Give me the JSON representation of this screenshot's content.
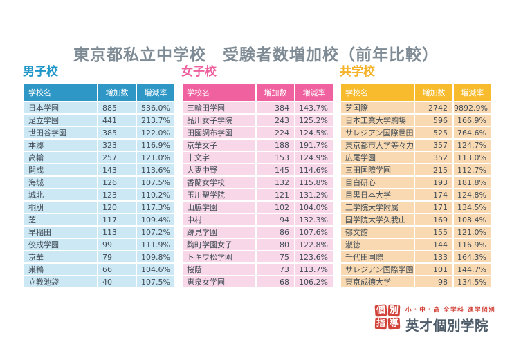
{
  "page_title": "東京都私立中学校　受験者数増加校（前年比較）",
  "chart_data": [
    {
      "type": "table",
      "title": "男子校",
      "columns": [
        "学校名",
        "増加数",
        "増減率"
      ],
      "colors": {
        "accent": "#1e96c8",
        "header_bg": "#2e97c6",
        "row_bg": "#cce8f4"
      },
      "num_align": "left",
      "rows": [
        [
          "日本学園",
          885,
          "536.0%"
        ],
        [
          "足立学園",
          441,
          "213.7%"
        ],
        [
          "世田谷学園",
          385,
          "122.0%"
        ],
        [
          "本郷",
          323,
          "116.9%"
        ],
        [
          "高輪",
          257,
          "121.0%"
        ],
        [
          "開成",
          143,
          "113.6%"
        ],
        [
          "海城",
          126,
          "107.5%"
        ],
        [
          "城北",
          123,
          "110.2%"
        ],
        [
          "桐朋",
          120,
          "117.3%"
        ],
        [
          "芝",
          117,
          "109.4%"
        ],
        [
          "早稲田",
          113,
          "107.2%"
        ],
        [
          "佼成学園",
          99,
          "111.9%"
        ],
        [
          "京華",
          79,
          "109.8%"
        ],
        [
          "巣鴨",
          66,
          "104.6%"
        ],
        [
          "立教池袋",
          40,
          "107.5%"
        ]
      ]
    },
    {
      "type": "table",
      "title": "女子校",
      "columns": [
        "学校名",
        "増加数",
        "増減率"
      ],
      "colors": {
        "accent": "#ee5f9e",
        "header_bg": "#f0619f",
        "row_bg": "#f8d7e8"
      },
      "num_align": "right",
      "rows": [
        [
          "三輪田学園",
          384,
          "143.7%"
        ],
        [
          "品川女子学院",
          243,
          "125.2%"
        ],
        [
          "田園調布学園",
          224,
          "124.5%"
        ],
        [
          "京華女子",
          188,
          "191.7%"
        ],
        [
          "十文字",
          153,
          "124.9%"
        ],
        [
          "大妻中野",
          145,
          "114.6%"
        ],
        [
          "香蘭女学校",
          132,
          "115.8%"
        ],
        [
          "玉川聖学院",
          121,
          "131.2%"
        ],
        [
          "山脇学園",
          102,
          "104.0%"
        ],
        [
          "中村",
          94,
          "132.3%"
        ],
        [
          "跡見学園",
          86,
          "107.6%"
        ],
        [
          "麹町学園女子",
          80,
          "122.8%"
        ],
        [
          "トキワ松学園",
          75,
          "123.6%"
        ],
        [
          "桜蔭",
          73,
          "113.7%"
        ],
        [
          "恵泉女学園",
          68,
          "106.2%"
        ]
      ]
    },
    {
      "type": "table",
      "title": "共学校",
      "columns": [
        "学校名",
        "増加数",
        "増減率"
      ],
      "colors": {
        "accent": "#f5b32a",
        "header_bg": "#f7bb2d",
        "row_bg": "#f8d9b2"
      },
      "num_align": "right",
      "rows": [
        [
          "芝国際",
          2742,
          "9892.9%"
        ],
        [
          "日本工業大学駒場",
          596,
          "166.9%"
        ],
        [
          "サレジアン国際世田谷",
          525,
          "764.6%"
        ],
        [
          "東京都市大学等々力",
          357,
          "124.7%"
        ],
        [
          "広尾学園",
          352,
          "113.0%"
        ],
        [
          "三田国際学園",
          215,
          "112.7%"
        ],
        [
          "目白研心",
          193,
          "181.8%"
        ],
        [
          "目黒日本大学",
          174,
          "124.8%"
        ],
        [
          "工学院大学附属",
          171,
          "134.5%"
        ],
        [
          "国学院大学久我山",
          169,
          "108.4%"
        ],
        [
          "郁文館",
          155,
          "121.0%"
        ],
        [
          "淑徳",
          144,
          "116.9%"
        ],
        [
          "千代田国際",
          133,
          "164.3%"
        ],
        [
          "サレジアン国際学園",
          101,
          "144.7%"
        ],
        [
          "東京成徳大学",
          98,
          "134.5%"
        ]
      ]
    }
  ],
  "footer_logo": {
    "stamp": [
      "個",
      "別",
      "指",
      "導"
    ],
    "tagline": "小・中・高 全学科 進学個別",
    "brand_name": "英才個別学院",
    "colors": {
      "red": "#d14238",
      "dark": "#4e5c69"
    }
  }
}
